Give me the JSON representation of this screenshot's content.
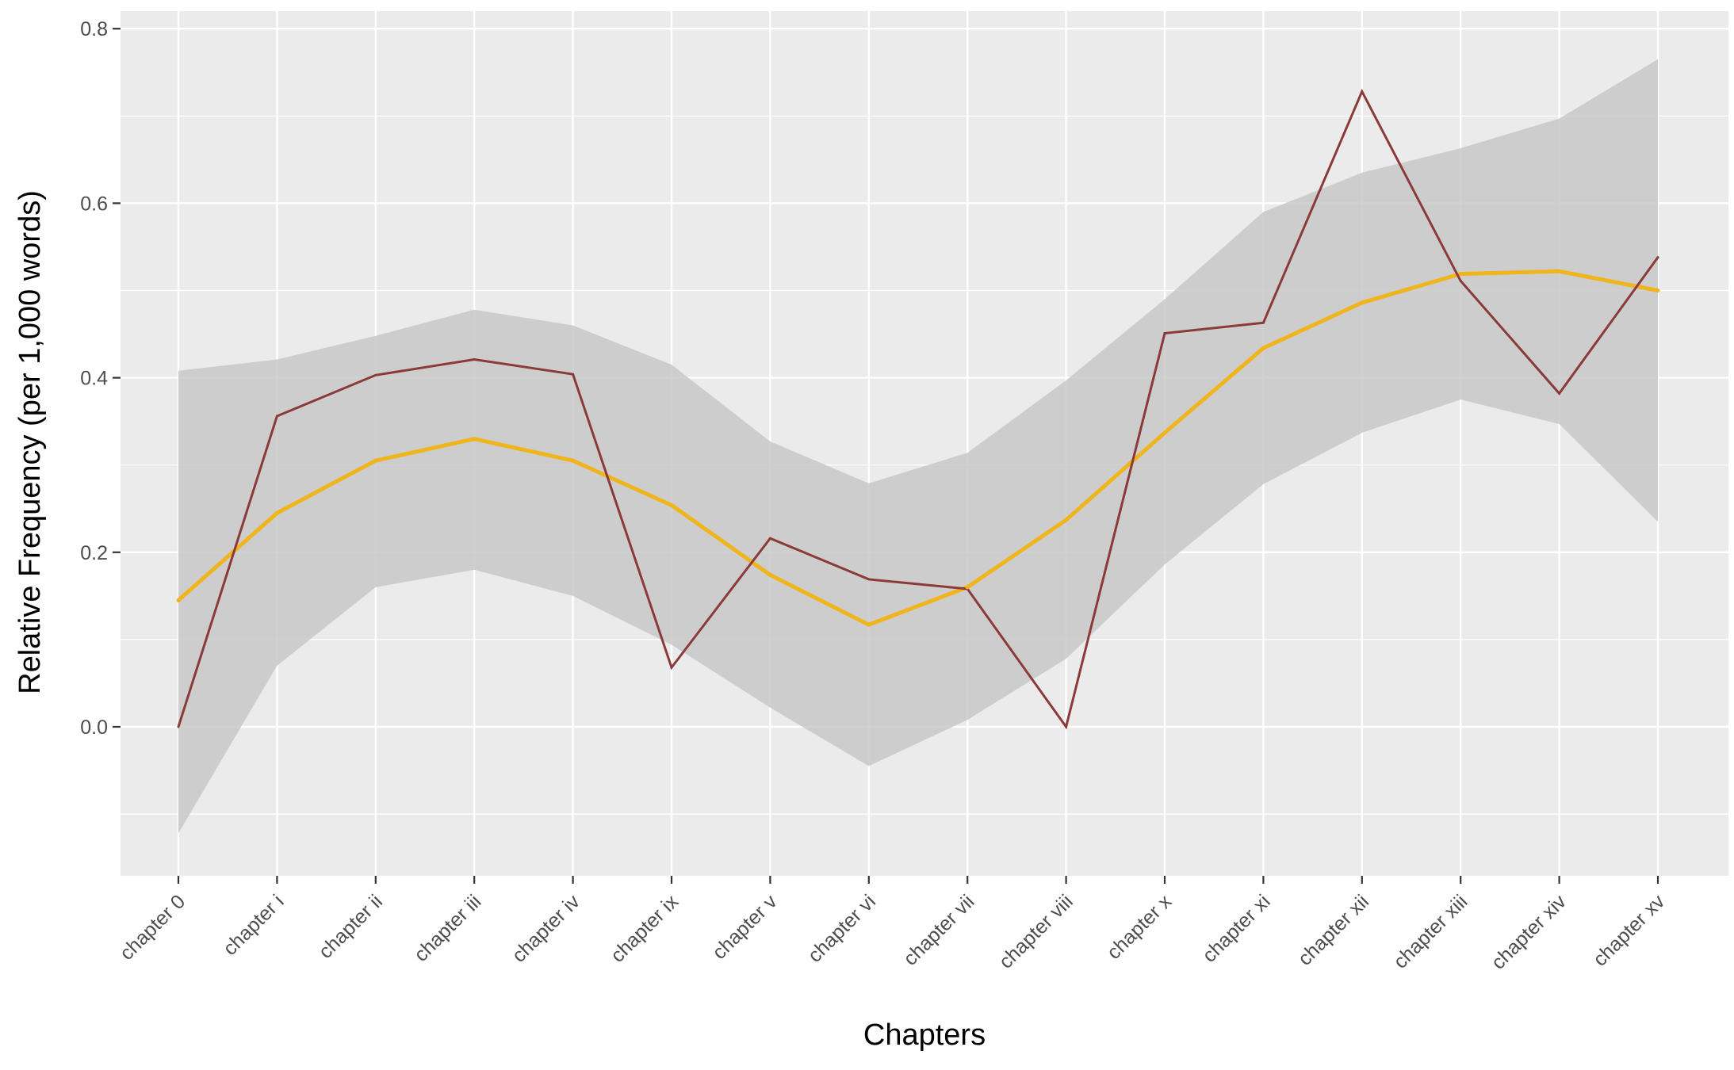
{
  "chart_data": {
    "type": "line",
    "title": "",
    "xlabel": "Chapters",
    "ylabel": "Relative Frequency (per 1,000 words)",
    "categories": [
      "chapter 0",
      "chapter i",
      "chapter ii",
      "chapter iii",
      "chapter iv",
      "chapter ix",
      "chapter v",
      "chapter vi",
      "chapter vii",
      "chapter viii",
      "chapter x",
      "chapter xi",
      "chapter xii",
      "chapter xiii",
      "chapter xiv",
      "chapter xv"
    ],
    "ylim": [
      -0.165,
      0.81
    ],
    "yticks": [
      0.0,
      0.2,
      0.4,
      0.6,
      0.8
    ],
    "ytick_labels": [
      "0.0",
      "0.2",
      "0.4",
      "0.6",
      "0.8"
    ],
    "grid": true,
    "legend": "none",
    "series": [
      {
        "role": "observed",
        "color": "#8b3a3a",
        "values": [
          0.0,
          0.356,
          0.403,
          0.421,
          0.404,
          0.068,
          0.216,
          0.169,
          0.158,
          0.0,
          0.451,
          0.463,
          0.728,
          0.511,
          0.382,
          0.538
        ]
      },
      {
        "role": "smoothed",
        "color": "#f0b41c",
        "values": [
          0.145,
          0.245,
          0.305,
          0.33,
          0.305,
          0.254,
          0.174,
          0.117,
          0.16,
          0.237,
          0.337,
          0.434,
          0.486,
          0.519,
          0.522,
          0.5
        ]
      }
    ],
    "band": {
      "color": "#c8c8c8",
      "lower": [
        -0.122,
        0.07,
        0.16,
        0.18,
        0.15,
        0.094,
        0.022,
        -0.045,
        0.008,
        0.078,
        0.186,
        0.278,
        0.337,
        0.375,
        0.347,
        0.235
      ],
      "upper": [
        0.408,
        0.421,
        0.448,
        0.478,
        0.46,
        0.415,
        0.327,
        0.279,
        0.314,
        0.397,
        0.49,
        0.59,
        0.635,
        0.663,
        0.697,
        0.765
      ]
    },
    "colors": {
      "panel": "#ebebeb",
      "gridline": "#ffffff",
      "axis_text": "#4d4d4d"
    }
  }
}
